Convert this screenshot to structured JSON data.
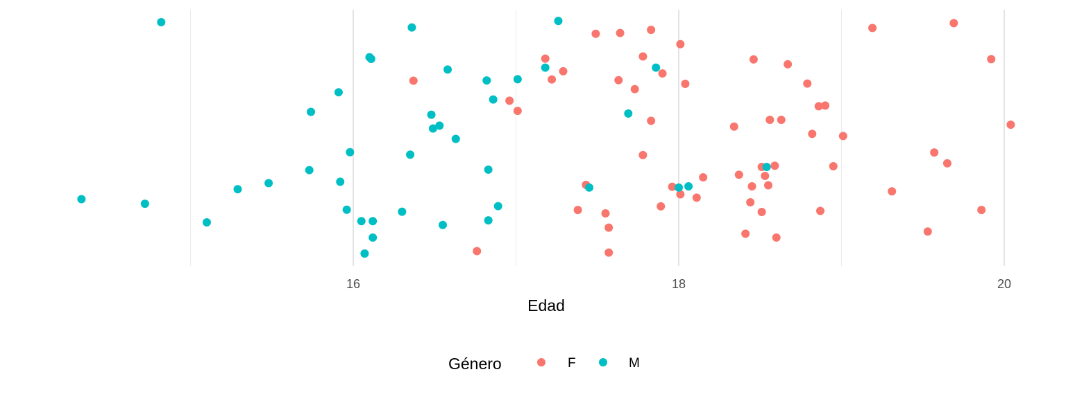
{
  "chart_data": {
    "type": "scatter",
    "title": "",
    "xlabel": "Edad",
    "ylabel": "",
    "xlim": [
      14.3,
      20.15
    ],
    "ylim": [
      0,
      1
    ],
    "x_ticks": [
      16,
      18,
      20
    ],
    "x_tick_labels": [
      "16",
      "18",
      "20"
    ],
    "x_minor_gridlines": [
      15,
      17,
      19
    ],
    "y_axis_visible": false,
    "grid": true,
    "legend": {
      "title": "Género",
      "position": "bottom",
      "entries": [
        "F",
        "M"
      ]
    },
    "series": [
      {
        "name": "F",
        "color": "#F8766D",
        "points": [
          {
            "x": 16.37,
            "y": 0.738
          },
          {
            "x": 16.76,
            "y": 0.033
          },
          {
            "x": 16.96,
            "y": 0.655
          },
          {
            "x": 17.01,
            "y": 0.613
          },
          {
            "x": 17.18,
            "y": 0.829
          },
          {
            "x": 17.22,
            "y": 0.743
          },
          {
            "x": 17.29,
            "y": 0.777
          },
          {
            "x": 17.38,
            "y": 0.203
          },
          {
            "x": 17.43,
            "y": 0.307
          },
          {
            "x": 17.49,
            "y": 0.932
          },
          {
            "x": 17.55,
            "y": 0.189
          },
          {
            "x": 17.57,
            "y": 0.13
          },
          {
            "x": 17.57,
            "y": 0.027
          },
          {
            "x": 17.63,
            "y": 0.74
          },
          {
            "x": 17.64,
            "y": 0.935
          },
          {
            "x": 17.73,
            "y": 0.703
          },
          {
            "x": 17.78,
            "y": 0.838
          },
          {
            "x": 17.78,
            "y": 0.43
          },
          {
            "x": 17.83,
            "y": 0.948
          },
          {
            "x": 17.83,
            "y": 0.572
          },
          {
            "x": 17.89,
            "y": 0.218
          },
          {
            "x": 17.9,
            "y": 0.768
          },
          {
            "x": 17.96,
            "y": 0.299
          },
          {
            "x": 18.01,
            "y": 0.268
          },
          {
            "x": 18.01,
            "y": 0.889
          },
          {
            "x": 18.04,
            "y": 0.725
          },
          {
            "x": 18.11,
            "y": 0.254
          },
          {
            "x": 18.15,
            "y": 0.338
          },
          {
            "x": 18.34,
            "y": 0.548
          },
          {
            "x": 18.37,
            "y": 0.349
          },
          {
            "x": 18.41,
            "y": 0.105
          },
          {
            "x": 18.44,
            "y": 0.235
          },
          {
            "x": 18.45,
            "y": 0.301
          },
          {
            "x": 18.46,
            "y": 0.826
          },
          {
            "x": 18.51,
            "y": 0.381
          },
          {
            "x": 18.51,
            "y": 0.195
          },
          {
            "x": 18.53,
            "y": 0.344
          },
          {
            "x": 18.55,
            "y": 0.305
          },
          {
            "x": 18.56,
            "y": 0.576
          },
          {
            "x": 18.59,
            "y": 0.386
          },
          {
            "x": 18.6,
            "y": 0.089
          },
          {
            "x": 18.63,
            "y": 0.576
          },
          {
            "x": 18.67,
            "y": 0.806
          },
          {
            "x": 18.79,
            "y": 0.726
          },
          {
            "x": 18.82,
            "y": 0.518
          },
          {
            "x": 18.86,
            "y": 0.632
          },
          {
            "x": 18.87,
            "y": 0.199
          },
          {
            "x": 18.9,
            "y": 0.635
          },
          {
            "x": 18.95,
            "y": 0.384
          },
          {
            "x": 19.01,
            "y": 0.509
          },
          {
            "x": 19.19,
            "y": 0.956
          },
          {
            "x": 19.31,
            "y": 0.28
          },
          {
            "x": 19.53,
            "y": 0.114
          },
          {
            "x": 19.57,
            "y": 0.441
          },
          {
            "x": 19.65,
            "y": 0.396
          },
          {
            "x": 19.69,
            "y": 0.976
          },
          {
            "x": 19.86,
            "y": 0.203
          },
          {
            "x": 19.92,
            "y": 0.827
          },
          {
            "x": 20.04,
            "y": 0.556
          }
        ]
      },
      {
        "name": "M",
        "color": "#00BFC4",
        "points": [
          {
            "x": 14.33,
            "y": 0.248
          },
          {
            "x": 14.72,
            "y": 0.229
          },
          {
            "x": 14.82,
            "y": 0.98
          },
          {
            "x": 15.1,
            "y": 0.152
          },
          {
            "x": 15.29,
            "y": 0.289
          },
          {
            "x": 15.48,
            "y": 0.314
          },
          {
            "x": 15.73,
            "y": 0.368
          },
          {
            "x": 15.74,
            "y": 0.609
          },
          {
            "x": 15.91,
            "y": 0.69
          },
          {
            "x": 15.92,
            "y": 0.32
          },
          {
            "x": 15.96,
            "y": 0.204
          },
          {
            "x": 15.98,
            "y": 0.442
          },
          {
            "x": 16.05,
            "y": 0.157
          },
          {
            "x": 16.07,
            "y": 0.023
          },
          {
            "x": 16.1,
            "y": 0.835
          },
          {
            "x": 16.11,
            "y": 0.828
          },
          {
            "x": 16.12,
            "y": 0.157
          },
          {
            "x": 16.12,
            "y": 0.089
          },
          {
            "x": 16.3,
            "y": 0.196
          },
          {
            "x": 16.35,
            "y": 0.432
          },
          {
            "x": 16.36,
            "y": 0.958
          },
          {
            "x": 16.48,
            "y": 0.597
          },
          {
            "x": 16.49,
            "y": 0.54
          },
          {
            "x": 16.53,
            "y": 0.552
          },
          {
            "x": 16.55,
            "y": 0.141
          },
          {
            "x": 16.58,
            "y": 0.784
          },
          {
            "x": 16.63,
            "y": 0.497
          },
          {
            "x": 16.82,
            "y": 0.739
          },
          {
            "x": 16.83,
            "y": 0.37
          },
          {
            "x": 16.83,
            "y": 0.16
          },
          {
            "x": 16.86,
            "y": 0.66
          },
          {
            "x": 16.89,
            "y": 0.219
          },
          {
            "x": 17.01,
            "y": 0.744
          },
          {
            "x": 17.18,
            "y": 0.792
          },
          {
            "x": 17.26,
            "y": 0.985
          },
          {
            "x": 17.45,
            "y": 0.296
          },
          {
            "x": 17.69,
            "y": 0.602
          },
          {
            "x": 17.86,
            "y": 0.792
          },
          {
            "x": 18.0,
            "y": 0.296
          },
          {
            "x": 18.06,
            "y": 0.301
          },
          {
            "x": 18.54,
            "y": 0.381
          }
        ]
      }
    ]
  }
}
